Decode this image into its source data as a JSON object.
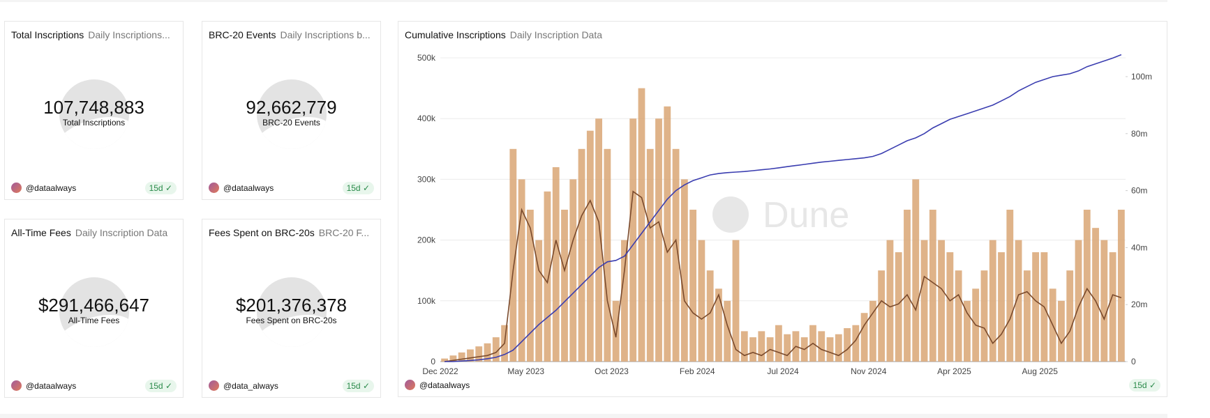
{
  "counters": [
    {
      "title": "Total Inscriptions",
      "subtitle": "Daily Inscriptions...",
      "value": "107,748,883",
      "label": "Total Inscriptions",
      "author": "@dataalways",
      "age": "15d"
    },
    {
      "title": "BRC-20 Events",
      "subtitle": "Daily Inscriptions b...",
      "value": "92,662,779",
      "label": "BRC-20 Events",
      "author": "@dataalways",
      "age": "15d"
    },
    {
      "title": "All-Time Fees",
      "subtitle": "Daily Inscription Data",
      "value": "$291,466,647",
      "label": "All-Time Fees",
      "author": "@dataalways",
      "age": "15d"
    },
    {
      "title": "Fees Spent on BRC-20s",
      "subtitle": "BRC-20 F...",
      "value": "$201,376,378",
      "label": "Fees Spent on BRC-20s",
      "author": "@data_always",
      "age": "15d"
    }
  ],
  "chart_header": {
    "title": "Cumulative Inscriptions",
    "subtitle": "Daily Inscription Data",
    "author": "@dataalways",
    "age": "15d",
    "watermark": "Dune"
  },
  "chart_data": {
    "type": "combo",
    "categories": [
      "Dec 2022",
      null,
      null,
      null,
      null,
      null,
      null,
      null,
      null,
      null,
      "May 2023",
      null,
      null,
      null,
      null,
      null,
      null,
      null,
      null,
      null,
      "Oct 2023",
      null,
      null,
      null,
      null,
      null,
      null,
      null,
      null,
      null,
      "Feb 2024",
      null,
      null,
      null,
      null,
      null,
      null,
      null,
      null,
      null,
      "Jul 2024",
      null,
      null,
      null,
      null,
      null,
      null,
      null,
      null,
      null,
      "Nov 2024",
      null,
      null,
      null,
      null,
      null,
      null,
      null,
      null,
      null,
      "Apr 2025",
      null,
      null,
      null,
      null,
      null,
      null,
      null,
      null,
      null,
      "Aug 2025",
      null,
      null,
      null,
      null,
      null,
      null,
      null,
      null,
      null
    ],
    "series": [
      {
        "type": "bar",
        "color": "#d9a674",
        "values": [
          5000,
          10000,
          15000,
          20000,
          25000,
          30000,
          40000,
          60000,
          350000,
          300000,
          250000,
          200000,
          280000,
          320000,
          250000,
          300000,
          350000,
          380000,
          400000,
          350000,
          100000,
          200000,
          400000,
          450000,
          350000,
          400000,
          420000,
          350000,
          300000,
          250000,
          200000,
          150000,
          120000,
          100000,
          200000,
          50000,
          40000,
          50000,
          40000,
          60000,
          45000,
          50000,
          40000,
          60000,
          50000,
          40000,
          45000,
          55000,
          60000,
          80000,
          100000,
          150000,
          200000,
          180000,
          250000,
          300000,
          200000,
          250000,
          200000,
          180000,
          150000,
          100000,
          120000,
          150000,
          200000,
          180000,
          250000,
          200000,
          150000,
          180000,
          180000,
          120000,
          100000,
          150000,
          200000,
          250000,
          220000,
          200000,
          180000,
          250000
        ]
      },
      {
        "type": "line",
        "color": "#7a4a2c",
        "values": [
          0,
          2000,
          4000,
          6000,
          8000,
          10000,
          15000,
          30000,
          150000,
          250000,
          220000,
          150000,
          130000,
          200000,
          150000,
          200000,
          240000,
          265000,
          230000,
          100000,
          40000,
          150000,
          280000,
          270000,
          220000,
          230000,
          180000,
          200000,
          100000,
          80000,
          70000,
          80000,
          110000,
          60000,
          20000,
          10000,
          15000,
          10000,
          20000,
          15000,
          10000,
          25000,
          20000,
          30000,
          20000,
          15000,
          10000,
          20000,
          35000,
          60000,
          80000,
          100000,
          90000,
          95000,
          110000,
          85000,
          140000,
          130000,
          120000,
          100000,
          110000,
          80000,
          60000,
          55000,
          30000,
          45000,
          70000,
          110000,
          115000,
          100000,
          90000,
          60000,
          30000,
          50000,
          90000,
          120000,
          100000,
          70000,
          110000,
          105000
        ]
      },
      {
        "type": "line",
        "axis": "y2",
        "color": "#3a3db0",
        "values": [
          0,
          0,
          200000,
          400000,
          600000,
          1000000,
          1500000,
          2500000,
          4000000,
          7000000,
          10000000,
          13000000,
          15500000,
          18000000,
          21000000,
          24000000,
          27000000,
          30000000,
          33000000,
          35000000,
          35500000,
          37000000,
          41000000,
          45000000,
          49000000,
          53000000,
          57000000,
          60000000,
          62000000,
          63500000,
          64500000,
          65500000,
          66000000,
          66300000,
          66500000,
          66700000,
          67000000,
          67300000,
          67600000,
          68000000,
          68400000,
          68800000,
          69200000,
          69600000,
          70000000,
          70300000,
          70600000,
          70900000,
          71200000,
          71500000,
          72000000,
          73000000,
          74500000,
          76000000,
          77500000,
          78500000,
          80000000,
          82000000,
          83500000,
          85000000,
          86000000,
          87000000,
          88000000,
          89000000,
          90000000,
          91500000,
          93000000,
          95000000,
          96500000,
          98000000,
          99000000,
          100000000,
          100500000,
          101000000,
          102000000,
          103500000,
          104500000,
          105500000,
          106500000,
          107700000
        ]
      }
    ],
    "ylim": [
      0,
      500000
    ],
    "yticks": [
      0,
      {
        "value": 100000,
        "label": "100k"
      },
      {
        "value": 200000,
        "label": "200k"
      },
      {
        "value": 300000,
        "label": "300k"
      },
      {
        "value": 400000,
        "label": "400k"
      },
      {
        "value": 500000,
        "label": "500k"
      }
    ],
    "y2lim": [
      0,
      106600000
    ],
    "y2ticks": [
      0,
      {
        "value": 20000000,
        "label": "20m"
      },
      {
        "value": 40000000,
        "label": "40m"
      },
      {
        "value": 60000000,
        "label": "60m"
      },
      {
        "value": 80000000,
        "label": "80m"
      },
      {
        "value": 100000000,
        "label": "100m"
      }
    ],
    "grid": true
  }
}
